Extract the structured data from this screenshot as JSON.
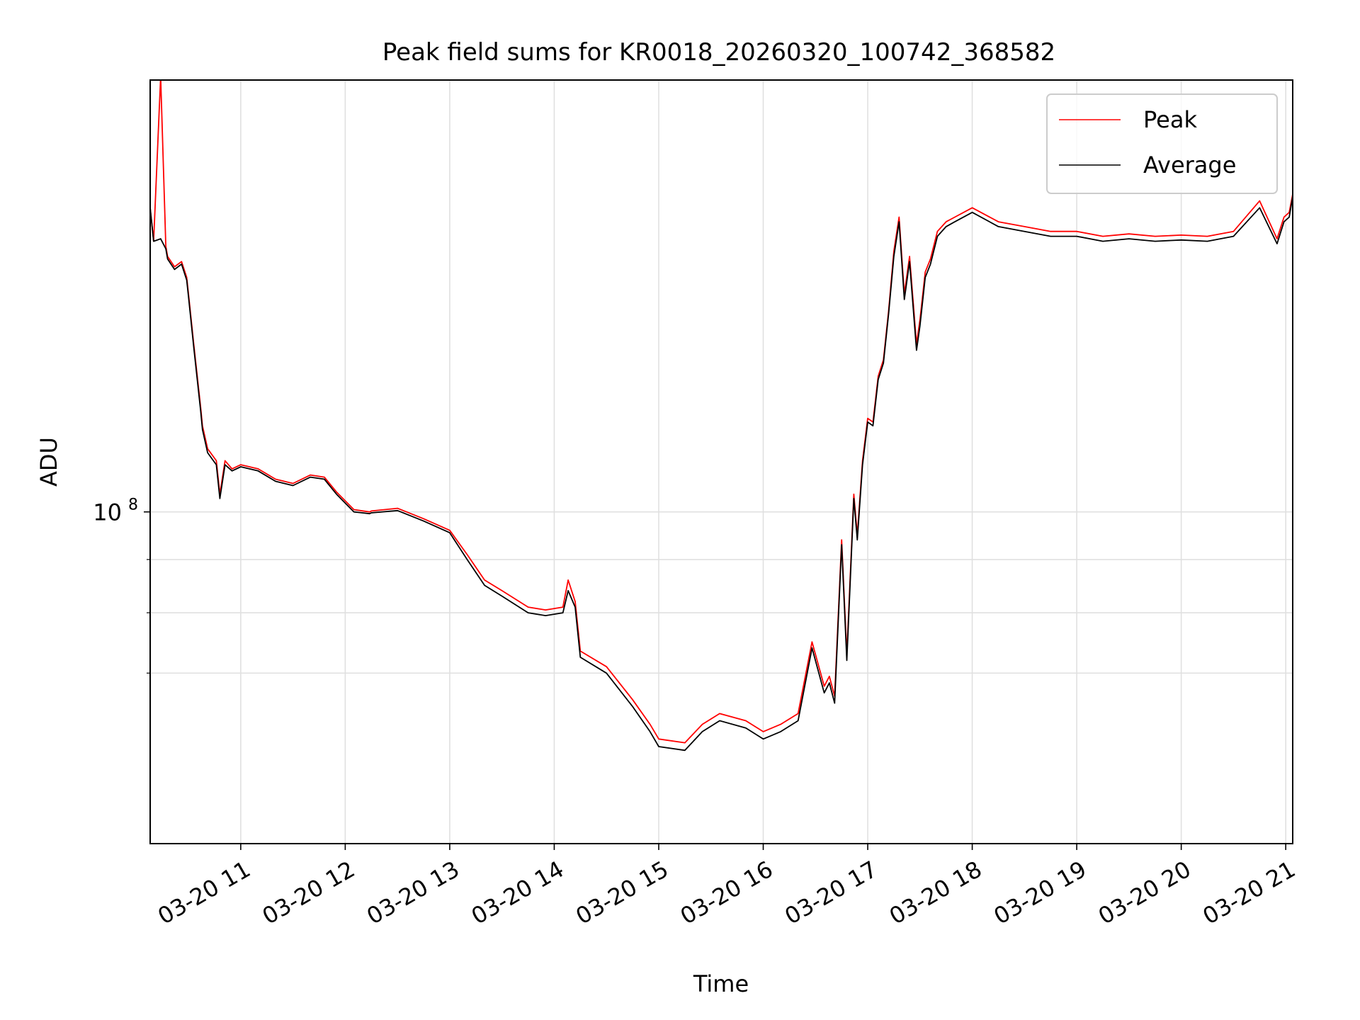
{
  "chart_data": {
    "type": "line",
    "title": "Peak field sums for KR0018_20260320_100742_368582",
    "xlabel": "Time",
    "ylabel": "ADU",
    "y_scale": "log",
    "ylim": [
      48000000,
      260000000
    ],
    "xlim": [
      "03-20 10:08",
      "03-20 21:04"
    ],
    "x_ticks": [
      "03-20 11",
      "03-20 12",
      "03-20 13",
      "03-20 14",
      "03-20 15",
      "03-20 16",
      "03-20 17",
      "03-20 18",
      "03-20 19",
      "03-20 20",
      "03-20 21"
    ],
    "y_ticks": [
      {
        "value": 100000000,
        "base": "10",
        "exponent": "8"
      }
    ],
    "y_minor_ticks": [
      70000000,
      80000000,
      90000000
    ],
    "grid": true,
    "legend_position": "top-right",
    "series": [
      {
        "name": "Peak",
        "color": "#ff0000",
        "x": [
          "03-20 10:08",
          "03-20 10:10",
          "03-20 10:14",
          "03-20 10:17",
          "03-20 10:18",
          "03-20 10:22",
          "03-20 10:26",
          "03-20 10:29",
          "03-20 10:30",
          "03-20 10:33",
          "03-20 10:37",
          "10:38",
          "03-20 10:41",
          "03-20 10:46",
          "03-20 10:48",
          "03-20 10:51",
          "03-20 10:55",
          "03-20 11:00",
          "03-20 11:10",
          "03-20 11:20",
          "03-20 11:30",
          "03-20 11:40",
          "03-20 11:48",
          "03-20 11:55",
          "03-20 12:05",
          "03-20 12:14",
          "03-20 12:15",
          "03-20 12:30",
          "03-20 12:45",
          "03-20 13:00",
          "03-20 13:10",
          "03-20 13:20",
          "03-20 13:30",
          "03-20 13:45",
          "03-20 13:55",
          "03-20 14:05",
          "03-20 14:08",
          "03-20 14:12",
          "03-20 14:15",
          "03-20 14:30",
          "03-20 14:45",
          "03-20 14:55",
          "03-20 15:00",
          "03-20 15:15",
          "03-20 15:25",
          "03-20 15:35",
          "03-20 15:50",
          "03-20 16:00",
          "03-20 16:10",
          "03-20 16:20",
          "03-20 16:28",
          "03-20 16:35",
          "03-20 16:38",
          "03-20 16:41",
          "03-20 16:45",
          "03-20 16:48",
          "03-20 16:52",
          "03-20 16:54",
          "03-20 16:57",
          "03-20 17:00",
          "03-20 17:03",
          "03-20 17:06",
          "03-20 17:09",
          "03-20 17:12",
          "03-20 17:15",
          "03-20 17:18",
          "03-20 17:21",
          "03-20 17:24",
          "03-20 17:28",
          "03-20 17:30",
          "03-20 17:33",
          "03-20 17:36",
          "03-20 17:40",
          "03-20 17:45",
          "03-20 17:50",
          "03-20 18:00",
          "03-20 18:15",
          "03-20 18:30",
          "03-20 18:45",
          "03-20 19:00",
          "03-20 19:15",
          "03-20 19:30",
          "03-20 19:45",
          "03-20 20:00",
          "03-20 20:15",
          "03-20 20:30",
          "03-20 20:45",
          "03-20 20:55",
          "03-20 20:59",
          "03-20 21:02",
          "03-20 21:04"
        ],
        "y": [
          196000000,
          182000000,
          262000000,
          180000000,
          176000000,
          172000000,
          174000000,
          168000000,
          162000000,
          145000000,
          126000000,
          121000000,
          115000000,
          112000000,
          104000000,
          112000000,
          110000000,
          111000000,
          110000000,
          107500000,
          106500000,
          108500000,
          108000000,
          104500000,
          100500000,
          100000000,
          100200000,
          100800000,
          98500000,
          96000000,
          91000000,
          86000000,
          84000000,
          81000000,
          80500000,
          81000000,
          86000000,
          82000000,
          73500000,
          71000000,
          66000000,
          62500000,
          60500000,
          60000000,
          62500000,
          64000000,
          63000000,
          61500000,
          62500000,
          64000000,
          75000000,
          68000000,
          69500000,
          66500000,
          94000000,
          73000000,
          104000000,
          95000000,
          112000000,
          123000000,
          122000000,
          135000000,
          140000000,
          156000000,
          178000000,
          192000000,
          162000000,
          176000000,
          145000000,
          153000000,
          170000000,
          175000000,
          186000000,
          190000000,
          192000000,
          196000000,
          190000000,
          188000000,
          186000000,
          186000000,
          184000000,
          185000000,
          184000000,
          184500000,
          184000000,
          186000000,
          199000000,
          183000000,
          192000000,
          194000000,
          202000000
        ]
      },
      {
        "name": "Average",
        "color": "#000000",
        "x": [
          "03-20 10:08",
          "03-20 10:10",
          "03-20 10:14",
          "03-20 10:17",
          "03-20 10:18",
          "03-20 10:22",
          "03-20 10:26",
          "03-20 10:29",
          "03-20 10:30",
          "03-20 10:33",
          "03-20 10:37",
          "03-20 10:38",
          "03-20 10:41",
          "03-20 10:46",
          "03-20 10:48",
          "03-20 10:51",
          "03-20 10:55",
          "03-20 11:00",
          "03-20 11:10",
          "03-20 11:20",
          "03-20 11:30",
          "03-20 11:40",
          "03-20 11:48",
          "03-20 11:55",
          "03-20 12:05",
          "03-20 12:14",
          "03-20 12:15",
          "03-20 12:30",
          "03-20 12:45",
          "03-20 13:00",
          "03-20 13:10",
          "03-20 13:20",
          "03-20 13:30",
          "03-20 13:45",
          "03-20 13:55",
          "03-20 14:05",
          "03-20 14:08",
          "03-20 14:12",
          "03-20 14:15",
          "03-20 14:30",
          "03-20 14:45",
          "03-20 14:55",
          "03-20 15:00",
          "03-20 15:15",
          "03-20 15:25",
          "03-20 15:35",
          "03-20 15:50",
          "03-20 16:00",
          "03-20 16:10",
          "03-20 16:20",
          "03-20 16:28",
          "03-20 16:35",
          "03-20 16:38",
          "03-20 16:41",
          "03-20 16:45",
          "03-20 16:48",
          "03-20 16:52",
          "03-20 16:54",
          "03-20 16:57",
          "03-20 17:00",
          "03-20 17:03",
          "03-20 17:06",
          "03-20 17:09",
          "03-20 17:12",
          "03-20 17:15",
          "03-20 17:18",
          "03-20 17:21",
          "03-20 17:24",
          "03-20 17:28",
          "03-20 17:30",
          "03-20 17:33",
          "03-20 17:36",
          "03-20 17:40",
          "03-20 17:45",
          "03-20 17:50",
          "03-20 18:00",
          "03-20 18:15",
          "03-20 18:30",
          "03-20 18:45",
          "03-20 19:00",
          "03-20 19:15",
          "03-20 19:30",
          "03-20 19:45",
          "03-20 20:00",
          "03-20 20:15",
          "03-20 20:30",
          "03-20 20:45",
          "03-20 20:55",
          "03-20 20:59",
          "03-20 21:02",
          "03-20 21:04"
        ],
        "y": [
          196000000,
          182000000,
          183000000,
          179000000,
          175000000,
          171000000,
          173000000,
          167000000,
          161000000,
          144000000,
          125000000,
          120000000,
          114000000,
          111000000,
          103000000,
          111000000,
          109500000,
          110500000,
          109500000,
          107000000,
          106000000,
          108000000,
          107500000,
          104000000,
          100000000,
          99600000,
          99800000,
          100300000,
          98000000,
          95500000,
          90000000,
          85000000,
          83000000,
          80000000,
          79500000,
          80000000,
          84000000,
          81000000,
          72500000,
          70000000,
          65000000,
          61500000,
          59500000,
          59000000,
          61500000,
          63000000,
          62000000,
          60500000,
          61500000,
          63000000,
          74000000,
          67000000,
          68500000,
          65500000,
          93000000,
          72000000,
          103000000,
          94000000,
          111000000,
          122000000,
          121000000,
          134000000,
          139000000,
          155000000,
          176000000,
          190000000,
          160000000,
          174000000,
          143000000,
          151000000,
          168000000,
          173000000,
          184000000,
          188000000,
          190000000,
          194000000,
          188000000,
          186000000,
          184000000,
          184000000,
          182000000,
          183000000,
          182000000,
          182500000,
          182000000,
          184000000,
          196000000,
          181000000,
          190000000,
          192000000,
          201000000
        ]
      }
    ]
  }
}
